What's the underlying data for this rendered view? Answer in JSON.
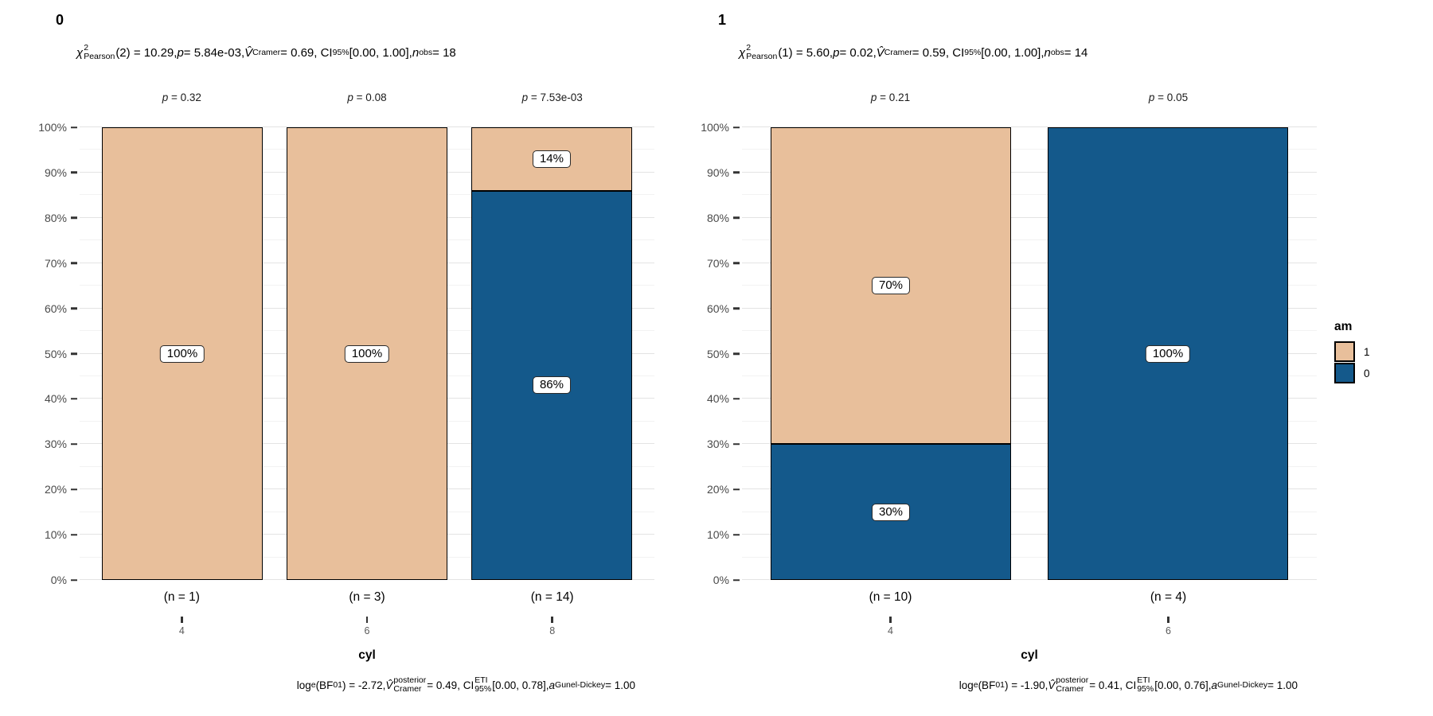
{
  "legend": {
    "title": "am",
    "items": [
      {
        "label": "1",
        "series": "1"
      },
      {
        "label": "0",
        "series": "0"
      }
    ]
  },
  "series_colors": {
    "1": "#E8BF9B",
    "0": "#14598B"
  },
  "chart_data": [
    {
      "type": "bar",
      "stacking": "percent",
      "panel_label": "0",
      "subtitle_segments": [
        {
          "t": "χ",
          "it": true
        },
        {
          "stack": [
            "2",
            "Pearson"
          ]
        },
        {
          "t": "(2) = 10.29, "
        },
        {
          "t": "p",
          "it": true
        },
        {
          "t": " = 5.84e-03, "
        },
        {
          "t": "V̂",
          "it": true
        },
        {
          "t": "Cramer",
          "sub": true
        },
        {
          "t": " = 0.69, CI"
        },
        {
          "t": "95%",
          "sub": true
        },
        {
          "t": " [0.00, 1.00], "
        },
        {
          "t": "n",
          "it": true
        },
        {
          "t": "obs",
          "sub": true
        },
        {
          "t": " = 18"
        }
      ],
      "p_labels": [
        "p = 0.32",
        "p = 0.08",
        "p = 7.53e-03"
      ],
      "categories": [
        "4",
        "6",
        "8"
      ],
      "n_labels": [
        "(n = 1)",
        "(n = 3)",
        "(n = 14)"
      ],
      "xlabel": "cyl",
      "ylim": [
        0,
        100
      ],
      "yticks": [
        "0%",
        "10%",
        "20%",
        "30%",
        "40%",
        "50%",
        "60%",
        "70%",
        "80%",
        "90%",
        "100%"
      ],
      "bars": [
        {
          "category": "4",
          "segments": [
            {
              "series": "1",
              "value": 100,
              "label": "100%"
            }
          ]
        },
        {
          "category": "6",
          "segments": [
            {
              "series": "1",
              "value": 100,
              "label": "100%"
            }
          ]
        },
        {
          "category": "8",
          "segments": [
            {
              "series": "0",
              "value": 86,
              "label": "86%"
            },
            {
              "series": "1",
              "value": 14,
              "label": "14%"
            }
          ]
        }
      ],
      "caption_segments": [
        {
          "t": "log"
        },
        {
          "t": "e",
          "sub": true
        },
        {
          "t": "(BF"
        },
        {
          "t": "01",
          "sub": true
        },
        {
          "t": ") = -2.72, "
        },
        {
          "t": "V̂",
          "it": true
        },
        {
          "stack": [
            "posterior",
            "Cramer"
          ]
        },
        {
          "t": " = 0.49, CI"
        },
        {
          "stack": [
            "ETI",
            "95%"
          ]
        },
        {
          "t": " [0.00, 0.78], "
        },
        {
          "t": "a",
          "it": true
        },
        {
          "t": "Gunel-Dickey",
          "sub": true
        },
        {
          "t": " = 1.00"
        }
      ]
    },
    {
      "type": "bar",
      "stacking": "percent",
      "panel_label": "1",
      "subtitle_segments": [
        {
          "t": "χ",
          "it": true
        },
        {
          "stack": [
            "2",
            "Pearson"
          ]
        },
        {
          "t": "(1) = 5.60, "
        },
        {
          "t": "p",
          "it": true
        },
        {
          "t": " = 0.02, "
        },
        {
          "t": "V̂",
          "it": true
        },
        {
          "t": "Cramer",
          "sub": true
        },
        {
          "t": " = 0.59, CI"
        },
        {
          "t": "95%",
          "sub": true
        },
        {
          "t": " [0.00, 1.00], "
        },
        {
          "t": "n",
          "it": true
        },
        {
          "t": "obs",
          "sub": true
        },
        {
          "t": " = 14"
        }
      ],
      "p_labels": [
        "p = 0.21",
        "p = 0.05"
      ],
      "categories": [
        "4",
        "6"
      ],
      "n_labels": [
        "(n = 10)",
        "(n = 4)"
      ],
      "xlabel": "cyl",
      "ylim": [
        0,
        100
      ],
      "yticks": [
        "0%",
        "10%",
        "20%",
        "30%",
        "40%",
        "50%",
        "60%",
        "70%",
        "80%",
        "90%",
        "100%"
      ],
      "bars": [
        {
          "category": "4",
          "segments": [
            {
              "series": "0",
              "value": 30,
              "label": "30%"
            },
            {
              "series": "1",
              "value": 70,
              "label": "70%"
            }
          ]
        },
        {
          "category": "6",
          "segments": [
            {
              "series": "0",
              "value": 100,
              "label": "100%"
            }
          ]
        }
      ],
      "caption_segments": [
        {
          "t": "log"
        },
        {
          "t": "e",
          "sub": true
        },
        {
          "t": "(BF"
        },
        {
          "t": "01",
          "sub": true
        },
        {
          "t": ") = -1.90, "
        },
        {
          "t": "V̂",
          "it": true
        },
        {
          "stack": [
            "posterior",
            "Cramer"
          ]
        },
        {
          "t": " = 0.41, CI"
        },
        {
          "stack": [
            "ETI",
            "95%"
          ]
        },
        {
          "t": " [0.00, 0.76], "
        },
        {
          "t": "a",
          "it": true
        },
        {
          "t": "Gunel-Dickey",
          "sub": true
        },
        {
          "t": " = 1.00"
        }
      ]
    }
  ]
}
